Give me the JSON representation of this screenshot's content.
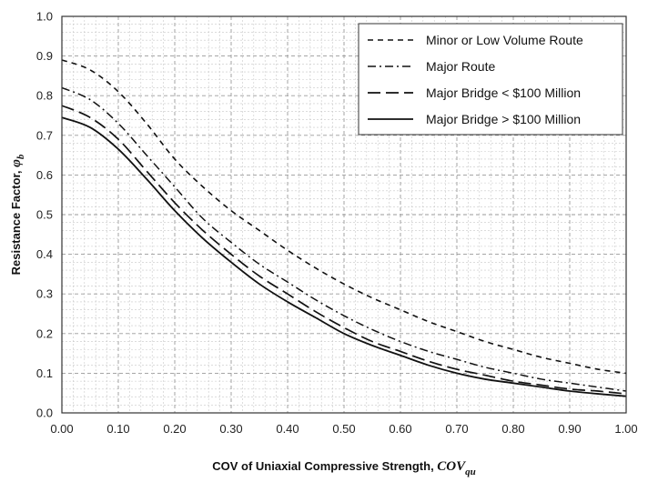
{
  "chart_data": {
    "type": "line",
    "xlabel": "COV of Uniaxial Compressive Strength, ",
    "xlabel_symbol": "COV",
    "xlabel_subscript": "qu",
    "ylabel": "Resistance Factor, ",
    "ylabel_symbol": "φ",
    "ylabel_subscript": "b",
    "xlim": [
      0,
      1
    ],
    "ylim": [
      0,
      1
    ],
    "xticks": [
      "0.00",
      "0.10",
      "0.20",
      "0.30",
      "0.40",
      "0.50",
      "0.60",
      "0.70",
      "0.80",
      "0.90",
      "1.00"
    ],
    "yticks": [
      "0.0",
      "0.1",
      "0.2",
      "0.3",
      "0.4",
      "0.5",
      "0.6",
      "0.7",
      "0.8",
      "0.9",
      "1.0"
    ],
    "grid": "major and minor, dashed",
    "legend_position": "top-right",
    "series": [
      {
        "name": "Minor or Low Volume Route",
        "style": "dashed",
        "points": [
          [
            0,
            0.89
          ],
          [
            0.05,
            0.865
          ],
          [
            0.1,
            0.81
          ],
          [
            0.15,
            0.73
          ],
          [
            0.2,
            0.64
          ],
          [
            0.25,
            0.57
          ],
          [
            0.3,
            0.51
          ],
          [
            0.35,
            0.46
          ],
          [
            0.4,
            0.41
          ],
          [
            0.45,
            0.365
          ],
          [
            0.5,
            0.325
          ],
          [
            0.55,
            0.29
          ],
          [
            0.6,
            0.26
          ],
          [
            0.65,
            0.23
          ],
          [
            0.7,
            0.205
          ],
          [
            0.75,
            0.18
          ],
          [
            0.8,
            0.16
          ],
          [
            0.85,
            0.14
          ],
          [
            0.9,
            0.125
          ],
          [
            0.95,
            0.11
          ],
          [
            1.0,
            0.1
          ]
        ]
      },
      {
        "name": "Major Route",
        "style": "dash-dot",
        "points": [
          [
            0,
            0.82
          ],
          [
            0.05,
            0.79
          ],
          [
            0.1,
            0.73
          ],
          [
            0.15,
            0.65
          ],
          [
            0.2,
            0.57
          ],
          [
            0.25,
            0.49
          ],
          [
            0.3,
            0.43
          ],
          [
            0.35,
            0.375
          ],
          [
            0.4,
            0.33
          ],
          [
            0.45,
            0.285
          ],
          [
            0.5,
            0.245
          ],
          [
            0.55,
            0.21
          ],
          [
            0.6,
            0.18
          ],
          [
            0.65,
            0.155
          ],
          [
            0.7,
            0.135
          ],
          [
            0.75,
            0.115
          ],
          [
            0.8,
            0.1
          ],
          [
            0.85,
            0.085
          ],
          [
            0.9,
            0.075
          ],
          [
            0.95,
            0.065
          ],
          [
            1.0,
            0.055
          ]
        ]
      },
      {
        "name": "Major Bridge < $100 Million",
        "style": "long-dash",
        "points": [
          [
            0,
            0.775
          ],
          [
            0.05,
            0.745
          ],
          [
            0.1,
            0.69
          ],
          [
            0.15,
            0.61
          ],
          [
            0.2,
            0.53
          ],
          [
            0.25,
            0.46
          ],
          [
            0.3,
            0.4
          ],
          [
            0.35,
            0.345
          ],
          [
            0.4,
            0.3
          ],
          [
            0.45,
            0.255
          ],
          [
            0.5,
            0.215
          ],
          [
            0.55,
            0.18
          ],
          [
            0.6,
            0.155
          ],
          [
            0.65,
            0.13
          ],
          [
            0.7,
            0.11
          ],
          [
            0.75,
            0.095
          ],
          [
            0.8,
            0.08
          ],
          [
            0.85,
            0.07
          ],
          [
            0.9,
            0.06
          ],
          [
            0.95,
            0.055
          ],
          [
            1.0,
            0.048
          ]
        ]
      },
      {
        "name": "Major Bridge > $100 Million",
        "style": "solid",
        "points": [
          [
            0,
            0.745
          ],
          [
            0.05,
            0.72
          ],
          [
            0.1,
            0.665
          ],
          [
            0.15,
            0.59
          ],
          [
            0.2,
            0.51
          ],
          [
            0.25,
            0.44
          ],
          [
            0.3,
            0.38
          ],
          [
            0.35,
            0.325
          ],
          [
            0.4,
            0.28
          ],
          [
            0.45,
            0.24
          ],
          [
            0.5,
            0.2
          ],
          [
            0.55,
            0.17
          ],
          [
            0.6,
            0.145
          ],
          [
            0.65,
            0.12
          ],
          [
            0.7,
            0.1
          ],
          [
            0.75,
            0.085
          ],
          [
            0.8,
            0.075
          ],
          [
            0.85,
            0.065
          ],
          [
            0.9,
            0.055
          ],
          [
            0.95,
            0.048
          ],
          [
            1.0,
            0.042
          ]
        ]
      }
    ]
  }
}
